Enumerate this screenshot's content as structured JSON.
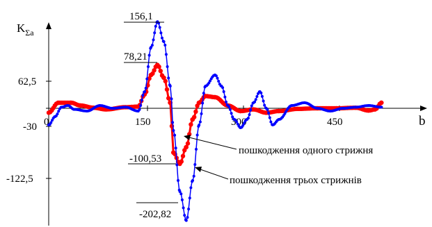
{
  "chart_data": {
    "type": "line",
    "ylabel": "K",
    "ylabel_sub": "Σa",
    "xlabel": "b",
    "x_ticks": [
      "0",
      "150",
      "300",
      "450"
    ],
    "x_tick_values": [
      0,
      150,
      300,
      450
    ],
    "y_ticks": [
      "62,5",
      "-30",
      "-122,5"
    ],
    "y_tick_values": [
      62.5,
      -30,
      -122.5
    ],
    "xlim": [
      0,
      540
    ],
    "ylim": [
      -215,
      165
    ],
    "grid": false,
    "annotations": {
      "max_blue": "156,1",
      "max_red": "78,21",
      "min_red": "-100,53",
      "min_blue": "-202,82",
      "label_red": "пошкодження одного стрижня",
      "label_blue": "пошкодження трьох стрижнів"
    },
    "series": [
      {
        "name": "пошкодження одного стрижня",
        "color": "#ff0000",
        "x": [
          0,
          15,
          35,
          50,
          70,
          90,
          120,
          140,
          150,
          160,
          170,
          180,
          190,
          195,
          205,
          215,
          225,
          235,
          245,
          260,
          280,
          300,
          320,
          340,
          360,
          390,
          420,
          450,
          480,
          500,
          510,
          520
        ],
        "y": [
          -8,
          10,
          10,
          5,
          1,
          -2,
          2,
          3,
          25,
          60,
          78,
          55,
          10,
          -80,
          -100,
          -70,
          -20,
          10,
          22,
          20,
          5,
          -5,
          -2,
          -8,
          -5,
          -1,
          0,
          0,
          1,
          -4,
          -2,
          10
        ]
      },
      {
        "name": "пошкодження трьох стрижнів",
        "color": "#0000ff",
        "x": [
          0,
          10,
          20,
          30,
          40,
          60,
          80,
          100,
          120,
          140,
          150,
          160,
          170,
          180,
          190,
          195,
          205,
          215,
          225,
          235,
          245,
          260,
          270,
          280,
          290,
          300,
          310,
          320,
          330,
          340,
          350,
          360,
          380,
          400,
          420,
          440,
          460,
          480,
          500,
          520
        ],
        "y": [
          -30,
          -15,
          2,
          5,
          -2,
          -5,
          5,
          0,
          2,
          -5,
          30,
          110,
          156,
          120,
          40,
          -40,
          -150,
          -202,
          -130,
          -30,
          40,
          60,
          40,
          5,
          -20,
          -35,
          -20,
          10,
          30,
          0,
          -30,
          -20,
          5,
          10,
          0,
          -5,
          0,
          2,
          5,
          2
        ]
      }
    ]
  }
}
